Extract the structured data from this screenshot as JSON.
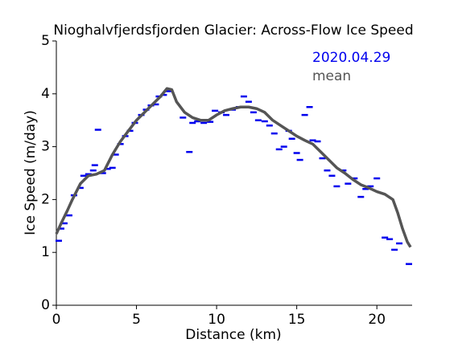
{
  "chart_data": {
    "type": "scatter",
    "title": "Nioghalvfjerdsfjorden Glacier: Across-Flow Ice Speed",
    "x_label": "Distance (km)",
    "y_label": "Ice Speed (m/day)",
    "xlim": [
      0,
      22.2
    ],
    "ylim": [
      0,
      5
    ],
    "xticks": [
      0,
      5,
      10,
      15,
      20
    ],
    "yticks": [
      0,
      1,
      2,
      3,
      4,
      5
    ],
    "legend": "upper right",
    "series": [
      {
        "name": "2020.04.29",
        "color": "#0000ee",
        "type": "scatter",
        "x": [
          0.15,
          0.3,
          0.5,
          0.8,
          1.1,
          1.5,
          1.7,
          2.0,
          2.3,
          2.4,
          2.6,
          2.9,
          3.2,
          3.5,
          3.7,
          4.0,
          4.3,
          4.6,
          4.9,
          5.3,
          5.6,
          5.9,
          6.2,
          6.4,
          6.7,
          7.0,
          7.9,
          8.3,
          8.5,
          8.8,
          9.2,
          9.6,
          9.9,
          10.3,
          10.6,
          11.0,
          11.4,
          11.7,
          12.0,
          12.3,
          12.6,
          13.0,
          13.3,
          13.6,
          13.9,
          14.2,
          14.5,
          14.7,
          15.0,
          15.2,
          15.5,
          15.8,
          16.0,
          16.3,
          16.6,
          16.9,
          17.2,
          17.5,
          17.9,
          18.2,
          18.6,
          19.0,
          19.3,
          19.6,
          20.0,
          20.5,
          20.8,
          21.1,
          21.4,
          22.0
        ],
        "values": [
          1.22,
          1.45,
          1.55,
          1.7,
          2.08,
          2.22,
          2.45,
          2.48,
          2.55,
          2.65,
          3.32,
          2.5,
          2.58,
          2.6,
          2.85,
          3.05,
          3.2,
          3.3,
          3.45,
          3.6,
          3.7,
          3.78,
          3.8,
          3.95,
          3.98,
          4.05,
          3.55,
          2.9,
          3.45,
          3.48,
          3.45,
          3.47,
          3.68,
          3.65,
          3.6,
          3.7,
          3.75,
          3.95,
          3.85,
          3.65,
          3.5,
          3.48,
          3.4,
          3.25,
          2.95,
          3.0,
          3.3,
          3.15,
          2.88,
          2.75,
          3.6,
          3.75,
          3.12,
          3.1,
          2.78,
          2.55,
          2.45,
          2.25,
          2.55,
          2.3,
          2.4,
          2.05,
          2.2,
          2.25,
          2.4,
          1.28,
          1.25,
          1.05,
          1.17,
          0.78
        ]
      },
      {
        "name": "mean",
        "color": "#555555",
        "type": "line",
        "x": [
          0,
          0.3,
          0.7,
          1.0,
          1.5,
          2.0,
          2.5,
          3.0,
          3.5,
          4.0,
          4.5,
          5.0,
          5.5,
          6.0,
          6.5,
          6.9,
          7.2,
          7.5,
          8.0,
          8.5,
          9.0,
          9.5,
          10.0,
          10.5,
          11.0,
          11.5,
          12.0,
          12.5,
          13.0,
          13.5,
          14.0,
          14.5,
          15.0,
          15.5,
          16.0,
          16.5,
          17.0,
          17.5,
          18.0,
          18.5,
          19.0,
          19.5,
          20.0,
          20.5,
          21.0,
          21.3,
          21.6,
          21.9,
          22.1
        ],
        "values": [
          1.35,
          1.55,
          1.8,
          2.0,
          2.3,
          2.45,
          2.48,
          2.55,
          2.85,
          3.1,
          3.3,
          3.5,
          3.65,
          3.8,
          3.95,
          4.1,
          4.08,
          3.85,
          3.65,
          3.55,
          3.5,
          3.5,
          3.6,
          3.68,
          3.72,
          3.75,
          3.75,
          3.72,
          3.65,
          3.5,
          3.4,
          3.3,
          3.2,
          3.12,
          3.05,
          2.9,
          2.75,
          2.6,
          2.5,
          2.38,
          2.28,
          2.22,
          2.15,
          2.1,
          2.0,
          1.75,
          1.45,
          1.2,
          1.1
        ]
      }
    ]
  }
}
